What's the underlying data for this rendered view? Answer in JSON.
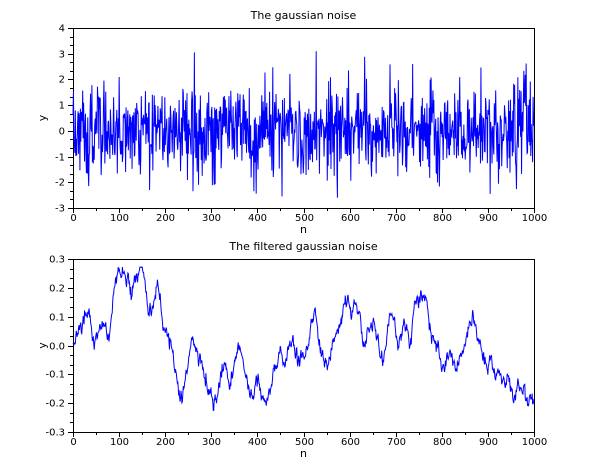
{
  "figure": {
    "background_color": "#ffffff",
    "axis_color": "#000000",
    "trace_color": "#0000ff"
  },
  "chart_data": [
    {
      "type": "line",
      "title": "The gaussian noise",
      "xlabel": "n",
      "ylabel": "y",
      "xlim": [
        0,
        1000
      ],
      "ylim": [
        -3,
        4
      ],
      "x_ticks": [
        0,
        100,
        200,
        300,
        400,
        500,
        600,
        700,
        800,
        900,
        1000
      ],
      "x_tick_labels": [
        "0",
        "100",
        "200",
        "300",
        "400",
        "500",
        "600",
        "700",
        "800",
        "900",
        "1000"
      ],
      "y_ticks": [
        4,
        3,
        2,
        1,
        0,
        -1,
        -2,
        -3
      ],
      "y_tick_labels": [
        "4",
        "3",
        "2",
        "1",
        "0",
        "-1",
        "-2",
        "-3"
      ],
      "x_minor_ticks_per_interval": 1,
      "y_minor_ticks_per_interval": 2,
      "grid": false,
      "legend": null,
      "line_color": "#0000ff",
      "n_points": 1000,
      "series": {
        "kind": "gaussian_noise",
        "mean": 0,
        "std": 0.9,
        "seed": 1337,
        "clip": [
          -2.6,
          3.1
        ],
        "notable_points": [
          [
            263,
            3.05
          ],
          [
            528,
            3.1
          ],
          [
            737,
            2.6
          ],
          [
            166,
            -2.3
          ],
          [
            392,
            -2.35
          ],
          [
            453,
            -2.55
          ],
          [
            905,
            -2.45
          ]
        ]
      }
    },
    {
      "type": "line",
      "title": "The filtered gaussian noise",
      "xlabel": "n",
      "ylabel": "y",
      "xlim": [
        0,
        1000
      ],
      "ylim": [
        -0.3,
        0.3
      ],
      "x_ticks": [
        0,
        100,
        200,
        300,
        400,
        500,
        600,
        700,
        800,
        900,
        1000
      ],
      "x_tick_labels": [
        "0",
        "100",
        "200",
        "300",
        "400",
        "500",
        "600",
        "700",
        "800",
        "900",
        "1000"
      ],
      "y_ticks": [
        0.3,
        0.2,
        0.1,
        0.0,
        -0.1,
        -0.2,
        -0.3
      ],
      "y_tick_labels": [
        "0.3",
        "0.2",
        "0.1",
        "0.0",
        "-0.1",
        "-0.2",
        "-0.3"
      ],
      "x_minor_ticks_per_interval": 1,
      "y_minor_ticks_per_interval": 2,
      "grid": false,
      "legend": null,
      "line_color": "#0000ff",
      "n_points": 1000,
      "series": {
        "kind": "keypoint_trend_with_noise",
        "seed": 2024,
        "texture_noise_std": 0.013,
        "texture_noise_ar": 0.55,
        "clip": [
          -0.225,
          0.272
        ],
        "keypoints": [
          [
            0,
            0.01
          ],
          [
            8,
            0.04
          ],
          [
            16,
            0.07
          ],
          [
            24,
            0.1
          ],
          [
            32,
            0.14
          ],
          [
            40,
            0.07
          ],
          [
            46,
            0.01
          ],
          [
            52,
            0.04
          ],
          [
            58,
            0.06
          ],
          [
            68,
            0.1
          ],
          [
            74,
            0.06
          ],
          [
            79,
            0.03
          ],
          [
            85,
            0.12
          ],
          [
            90,
            0.21
          ],
          [
            96,
            0.24
          ],
          [
            100,
            0.265
          ],
          [
            105,
            0.26
          ],
          [
            110,
            0.245
          ],
          [
            115,
            0.22
          ],
          [
            120,
            0.24
          ],
          [
            126,
            0.16
          ],
          [
            131,
            0.2
          ],
          [
            135,
            0.24
          ],
          [
            141,
            0.25
          ],
          [
            148,
            0.27
          ],
          [
            153,
            0.23
          ],
          [
            158,
            0.18
          ],
          [
            165,
            0.1
          ],
          [
            170,
            0.12
          ],
          [
            175,
            0.14
          ],
          [
            180,
            0.17
          ],
          [
            185,
            0.2
          ],
          [
            190,
            0.14
          ],
          [
            194,
            0.085
          ],
          [
            200,
            0.06
          ],
          [
            205,
            0.03
          ],
          [
            210,
            0.01
          ],
          [
            215,
            -0.01
          ],
          [
            221,
            -0.08
          ],
          [
            226,
            -0.12
          ],
          [
            232,
            -0.16
          ],
          [
            237,
            -0.185
          ],
          [
            243,
            -0.12
          ],
          [
            248,
            -0.07
          ],
          [
            254,
            -0.01
          ],
          [
            259,
            0.03
          ],
          [
            264,
            0.0
          ],
          [
            268,
            0.01
          ],
          [
            274,
            -0.04
          ],
          [
            280,
            -0.07
          ],
          [
            287,
            -0.1
          ],
          [
            292,
            -0.14
          ],
          [
            297,
            -0.16
          ],
          [
            303,
            -0.19
          ],
          [
            308,
            -0.215
          ],
          [
            313,
            -0.17
          ],
          [
            318,
            -0.12
          ],
          [
            323,
            -0.09
          ],
          [
            327,
            -0.075
          ],
          [
            334,
            -0.1
          ],
          [
            341,
            -0.15
          ],
          [
            348,
            -0.05
          ],
          [
            355,
            -0.015
          ],
          [
            363,
            -0.012
          ],
          [
            368,
            -0.05
          ],
          [
            374,
            -0.1
          ],
          [
            381,
            -0.17
          ],
          [
            390,
            -0.19
          ],
          [
            396,
            -0.14
          ],
          [
            402,
            -0.115
          ],
          [
            408,
            -0.17
          ],
          [
            415,
            -0.22
          ],
          [
            420,
            -0.18
          ],
          [
            425,
            -0.15
          ],
          [
            430,
            -0.12
          ],
          [
            434,
            -0.1
          ],
          [
            442,
            -0.07
          ],
          [
            450,
            0.015
          ],
          [
            455,
            -0.03
          ],
          [
            460,
            -0.07
          ],
          [
            465,
            -0.04
          ],
          [
            470,
            -0.01
          ],
          [
            478,
            0.03
          ],
          [
            483,
            -0.01
          ],
          [
            488,
            -0.04
          ],
          [
            494,
            -0.05
          ],
          [
            500,
            -0.035
          ],
          [
            505,
            -0.01
          ],
          [
            510,
            0.02
          ],
          [
            518,
            0.06
          ],
          [
            525,
            0.1
          ],
          [
            532,
            0.02
          ],
          [
            538,
            -0.01
          ],
          [
            543,
            -0.04
          ],
          [
            549,
            -0.06
          ],
          [
            554,
            -0.07
          ],
          [
            560,
            -0.02
          ],
          [
            568,
            0.045
          ],
          [
            575,
            0.03
          ],
          [
            580,
            0.07
          ],
          [
            585,
            0.12
          ],
          [
            591,
            0.14
          ],
          [
            597,
            0.16
          ],
          [
            604,
            0.1
          ],
          [
            608,
            0.16
          ],
          [
            611,
            0.155
          ],
          [
            615,
            0.12
          ],
          [
            622,
            0.14
          ],
          [
            626,
            0.05
          ],
          [
            630,
            -0.01
          ],
          [
            635,
            0.01
          ],
          [
            640,
            0.04
          ],
          [
            645,
            0.07
          ],
          [
            651,
            0.1
          ],
          [
            656,
            0.05
          ],
          [
            660,
            0.01
          ],
          [
            664,
            -0.02
          ],
          [
            668,
            -0.04
          ],
          [
            672,
            -0.06
          ],
          [
            678,
            0.0
          ],
          [
            683,
            0.06
          ],
          [
            690,
            0.1
          ],
          [
            698,
            0.07
          ],
          [
            702,
            0.02
          ],
          [
            705,
            -0.01
          ],
          [
            710,
            0.02
          ],
          [
            716,
            0.06
          ],
          [
            721,
            0.05
          ],
          [
            726,
            0.045
          ],
          [
            730,
            -0.015
          ],
          [
            734,
            0.04
          ],
          [
            737,
            0.1
          ],
          [
            741,
            0.13
          ],
          [
            745,
            0.16
          ],
          [
            750,
            0.19
          ],
          [
            755,
            0.2
          ],
          [
            759,
            0.18
          ],
          [
            762,
            0.17
          ],
          [
            766,
            0.19
          ],
          [
            770,
            0.12
          ],
          [
            773,
            0.07
          ],
          [
            777,
            0.04
          ],
          [
            780,
            0.025
          ],
          [
            787,
            0.005
          ],
          [
            793,
            -0.03
          ],
          [
            798,
            -0.07
          ],
          [
            805,
            -0.1
          ],
          [
            810,
            -0.06
          ],
          [
            816,
            -0.025
          ],
          [
            821,
            -0.04
          ],
          [
            825,
            -0.05
          ],
          [
            830,
            -0.065
          ],
          [
            835,
            -0.06
          ],
          [
            840,
            -0.045
          ],
          [
            845,
            -0.03
          ],
          [
            850,
            -0.005
          ],
          [
            855,
            0.02
          ],
          [
            860,
            0.05
          ],
          [
            866,
            0.085
          ],
          [
            870,
            0.07
          ],
          [
            874,
            0.05
          ],
          [
            880,
            0.01
          ],
          [
            888,
            -0.035
          ],
          [
            894,
            -0.05
          ],
          [
            899,
            -0.07
          ],
          [
            906,
            -0.055
          ],
          [
            912,
            -0.08
          ],
          [
            917,
            -0.105
          ],
          [
            924,
            -0.085
          ],
          [
            930,
            -0.11
          ],
          [
            938,
            -0.14
          ],
          [
            945,
            -0.115
          ],
          [
            950,
            -0.14
          ],
          [
            956,
            -0.18
          ],
          [
            962,
            -0.155
          ],
          [
            967,
            -0.13
          ],
          [
            974,
            -0.15
          ],
          [
            981,
            -0.17
          ],
          [
            988,
            -0.21
          ],
          [
            992,
            -0.2
          ],
          [
            995,
            -0.19
          ],
          [
            1000,
            -0.2
          ]
        ]
      }
    }
  ]
}
